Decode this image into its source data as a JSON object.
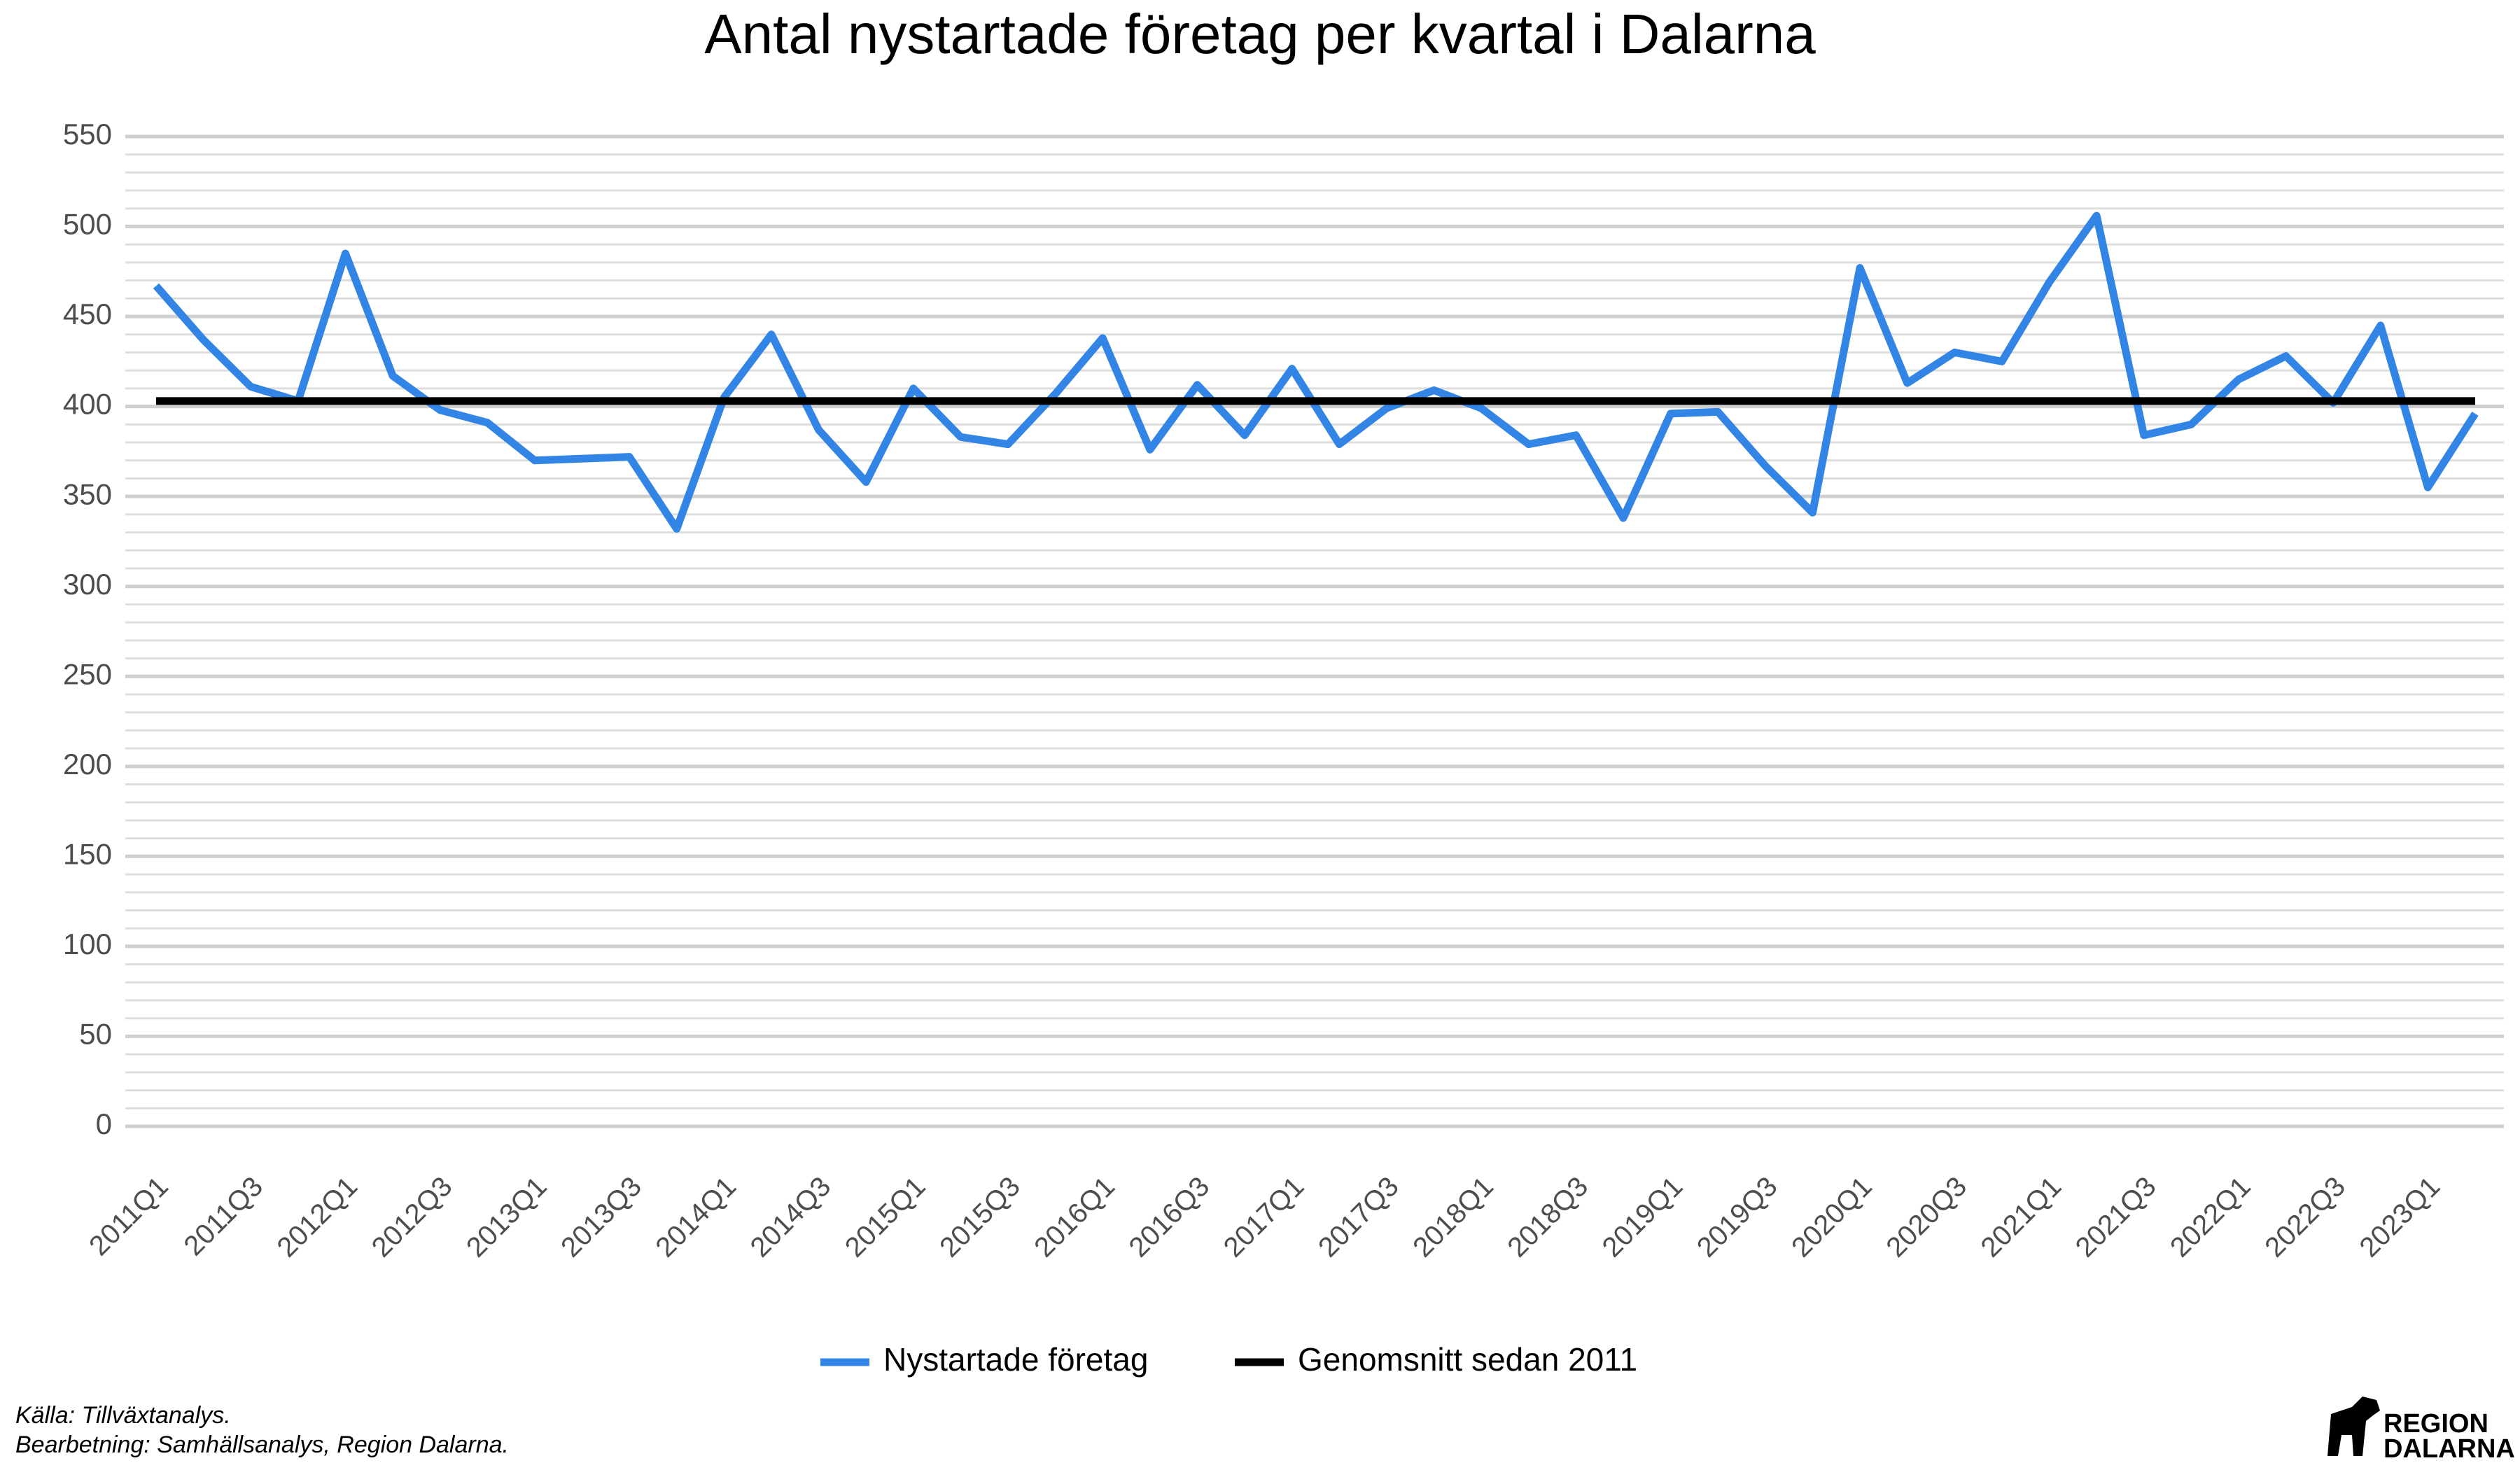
{
  "chart_data": {
    "type": "line",
    "title": "Antal nystartade företag per kvartal i Dalarna",
    "categories": [
      "2011Q1",
      null,
      "2011Q3",
      null,
      "2012Q1",
      null,
      "2012Q3",
      null,
      "2013Q1",
      null,
      "2013Q3",
      null,
      "2014Q1",
      null,
      "2014Q3",
      null,
      "2015Q1",
      null,
      "2015Q3",
      null,
      "2016Q1",
      null,
      "2016Q3",
      null,
      "2017Q1",
      null,
      "2017Q3",
      null,
      "2018Q1",
      null,
      "2018Q3",
      null,
      "2019Q1",
      null,
      "2019Q3",
      null,
      "2020Q1",
      null,
      "2020Q3",
      null,
      "2021Q1",
      null,
      "2021Q3",
      null,
      "2022Q1",
      null,
      "2022Q3",
      null,
      "2023Q1",
      null
    ],
    "series": [
      {
        "name": "Nystartade företag",
        "color": "#3385e5",
        "values": [
          467,
          437,
          411,
          403,
          485,
          417,
          398,
          391,
          370,
          371,
          372,
          332,
          405,
          440,
          387,
          358,
          410,
          383,
          379,
          407,
          438,
          376,
          412,
          384,
          421,
          379,
          399,
          409,
          399,
          379,
          384,
          338,
          396,
          397,
          367,
          341,
          477,
          413,
          430,
          425,
          469,
          506,
          384,
          390,
          415,
          428,
          402,
          445,
          355,
          396
        ]
      },
      {
        "name": "Genomsnitt sedan 2011",
        "color": "#000000",
        "values": [
          403,
          403,
          403,
          403,
          403,
          403,
          403,
          403,
          403,
          403,
          403,
          403,
          403,
          403,
          403,
          403,
          403,
          403,
          403,
          403,
          403,
          403,
          403,
          403,
          403,
          403,
          403,
          403,
          403,
          403,
          403,
          403,
          403,
          403,
          403,
          403,
          403,
          403,
          403,
          403,
          403,
          403,
          403,
          403,
          403,
          403,
          403,
          403,
          403,
          403
        ]
      }
    ],
    "ylim": [
      0,
      550
    ],
    "yticks": [
      0,
      50,
      100,
      150,
      200,
      250,
      300,
      350,
      400,
      450,
      500,
      550
    ],
    "grid": true,
    "legend": "bottom"
  },
  "footer": {
    "source": "Källa: Tillväxtanalys.",
    "processing": "Bearbetning: Samhällsanalys, Region Dalarna.",
    "logo": [
      "REGION",
      "DALARNA"
    ]
  }
}
